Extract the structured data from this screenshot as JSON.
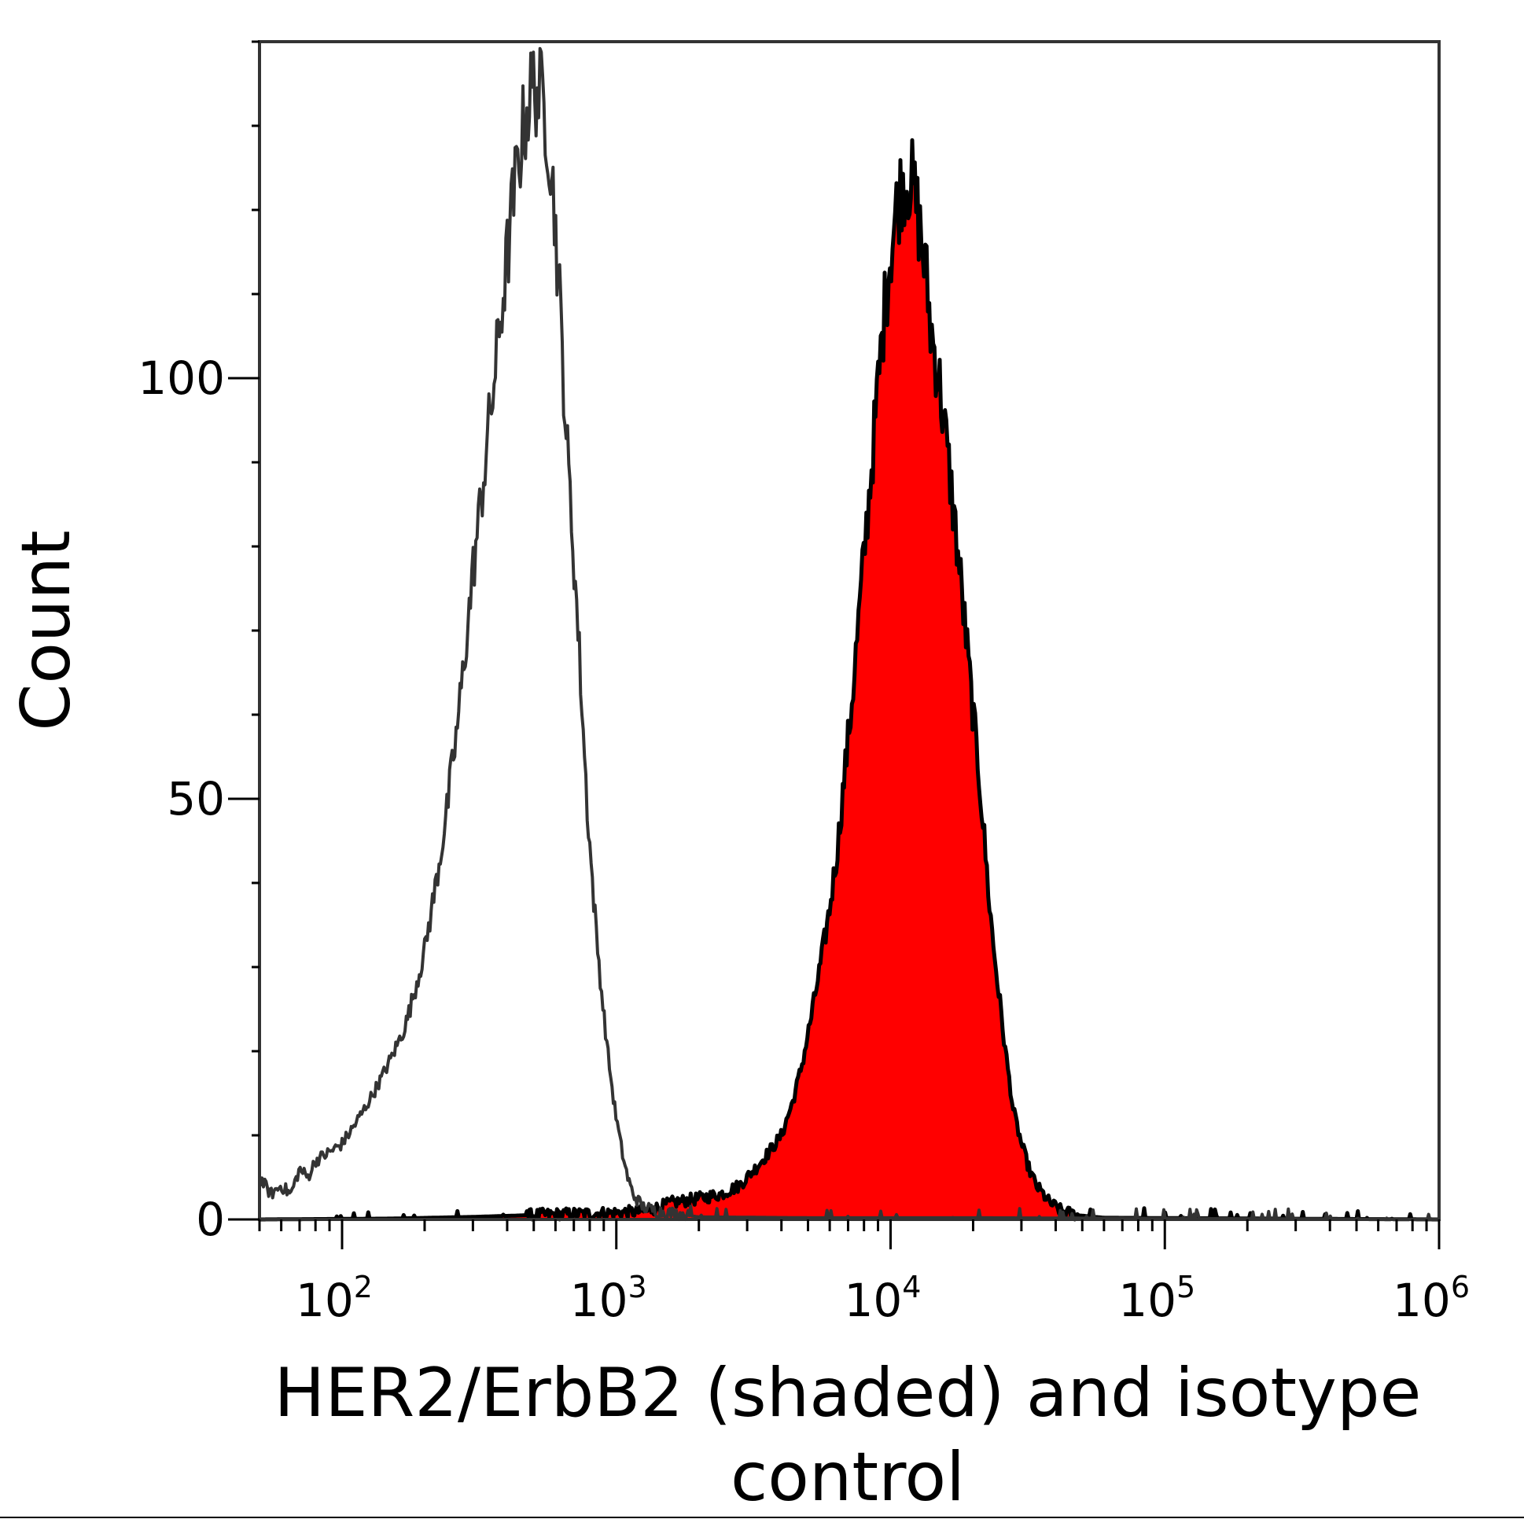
{
  "chart_data": {
    "type": "area",
    "title": "",
    "xlabel": "HER2/ErbB2 (shaded) and isotype control",
    "xlabel_lines": [
      "HER2/ErbB2 (shaded) and isotype",
      "control"
    ],
    "ylabel": "Count",
    "x_scale": "log",
    "xlim": [
      50,
      1000000
    ],
    "ylim": [
      0,
      140
    ],
    "x_ticks": [
      {
        "value": 100,
        "base": "10",
        "exp": "2"
      },
      {
        "value": 1000,
        "base": "10",
        "exp": "3"
      },
      {
        "value": 10000,
        "base": "10",
        "exp": "4"
      },
      {
        "value": 100000,
        "base": "10",
        "exp": "5"
      },
      {
        "value": 1000000,
        "base": "10",
        "exp": "6"
      }
    ],
    "y_ticks": [
      {
        "value": 0,
        "label": "0"
      },
      {
        "value": 50,
        "label": "50"
      },
      {
        "value": 100,
        "label": "100"
      }
    ],
    "y_minor_step": 10,
    "grid": false,
    "legend": "none",
    "series": [
      {
        "role": "isotype control",
        "fill": "none",
        "color": "#333333",
        "points": [
          [
            50,
            5
          ],
          [
            55,
            3
          ],
          [
            60,
            4
          ],
          [
            65,
            3
          ],
          [
            70,
            6
          ],
          [
            75,
            5
          ],
          [
            80,
            7
          ],
          [
            90,
            8
          ],
          [
            100,
            9
          ],
          [
            110,
            11
          ],
          [
            120,
            13
          ],
          [
            130,
            15
          ],
          [
            140,
            17
          ],
          [
            150,
            19
          ],
          [
            160,
            21
          ],
          [
            170,
            23
          ],
          [
            180,
            26
          ],
          [
            190,
            29
          ],
          [
            200,
            32
          ],
          [
            210,
            36
          ],
          [
            220,
            40
          ],
          [
            230,
            44
          ],
          [
            240,
            48
          ],
          [
            250,
            53
          ],
          [
            260,
            57
          ],
          [
            270,
            62
          ],
          [
            280,
            67
          ],
          [
            290,
            72
          ],
          [
            300,
            77
          ],
          [
            315,
            83
          ],
          [
            330,
            89
          ],
          [
            345,
            95
          ],
          [
            360,
            100
          ],
          [
            375,
            106
          ],
          [
            390,
            111
          ],
          [
            405,
            116
          ],
          [
            420,
            121
          ],
          [
            440,
            126
          ],
          [
            460,
            130
          ],
          [
            480,
            133
          ],
          [
            500,
            135
          ],
          [
            520,
            134
          ],
          [
            540,
            133
          ],
          [
            560,
            130
          ],
          [
            580,
            125
          ],
          [
            600,
            118
          ],
          [
            620,
            110
          ],
          [
            640,
            101
          ],
          [
            660,
            92
          ],
          [
            690,
            82
          ],
          [
            720,
            72
          ],
          [
            750,
            61
          ],
          [
            780,
            50
          ],
          [
            810,
            42
          ],
          [
            850,
            33
          ],
          [
            890,
            26
          ],
          [
            930,
            20
          ],
          [
            970,
            15
          ],
          [
            1000,
            12
          ],
          [
            1050,
            8
          ],
          [
            1100,
            5
          ],
          [
            1150,
            3
          ],
          [
            1250,
            1.5
          ],
          [
            1400,
            1
          ],
          [
            2000,
            0.3
          ],
          [
            5000,
            0.2
          ],
          [
            20000,
            0.2
          ],
          [
            1000000,
            0
          ]
        ]
      },
      {
        "role": "HER2/ErbB2",
        "fill": "#ff0000",
        "color": "#000000",
        "points": [
          [
            50,
            0
          ],
          [
            150,
            0.1
          ],
          [
            300,
            0.3
          ],
          [
            600,
            0.6
          ],
          [
            1000,
            0.8
          ],
          [
            1300,
            1
          ],
          [
            1600,
            2
          ],
          [
            2000,
            2.5
          ],
          [
            2400,
            3
          ],
          [
            2800,
            4
          ],
          [
            3200,
            6
          ],
          [
            3600,
            8
          ],
          [
            4000,
            10
          ],
          [
            4400,
            14
          ],
          [
            4800,
            19
          ],
          [
            5200,
            25
          ],
          [
            5600,
            31
          ],
          [
            6000,
            37
          ],
          [
            6400,
            44
          ],
          [
            6800,
            53
          ],
          [
            7200,
            61
          ],
          [
            7600,
            70
          ],
          [
            8000,
            79
          ],
          [
            8500,
            89
          ],
          [
            9000,
            99
          ],
          [
            9500,
            108
          ],
          [
            10000,
            115
          ],
          [
            10500,
            120
          ],
          [
            11000,
            123
          ],
          [
            11500,
            124
          ],
          [
            12000,
            123
          ],
          [
            12500,
            120
          ],
          [
            13000,
            116
          ],
          [
            13500,
            112
          ],
          [
            14000,
            106
          ],
          [
            15000,
            100
          ],
          [
            16000,
            92
          ],
          [
            17000,
            84
          ],
          [
            18000,
            76
          ],
          [
            19000,
            68
          ],
          [
            20000,
            60
          ],
          [
            21000,
            53
          ],
          [
            22000,
            45
          ],
          [
            23000,
            37
          ],
          [
            24000,
            31
          ],
          [
            25000,
            26
          ],
          [
            26000,
            21
          ],
          [
            27000,
            17
          ],
          [
            28000,
            13
          ],
          [
            30000,
            9
          ],
          [
            32000,
            6
          ],
          [
            34000,
            4
          ],
          [
            36000,
            3
          ],
          [
            38000,
            2
          ],
          [
            42000,
            1
          ],
          [
            48000,
            0.5
          ],
          [
            60000,
            0.2
          ],
          [
            1000000,
            0
          ]
        ]
      }
    ]
  }
}
